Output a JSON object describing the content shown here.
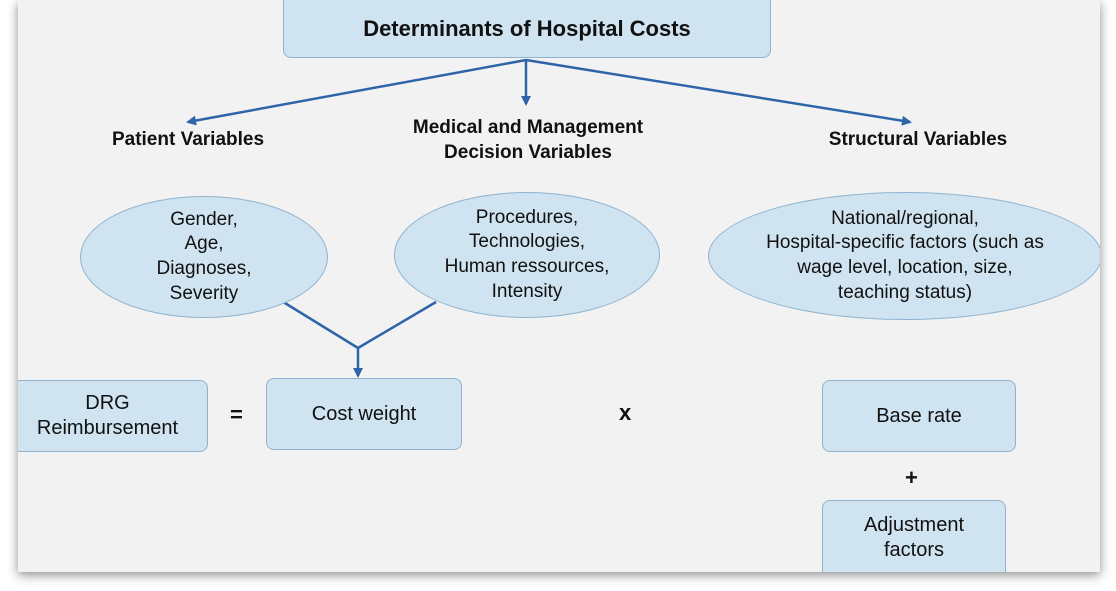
{
  "title": "Determinants of Hospital Costs",
  "categories": [
    {
      "heading": "Patient Variables",
      "factors": "Gender,\nAge,\nDiagnoses,\nSeverity"
    },
    {
      "heading": "Medical and Management\nDecision Variables",
      "factors": "Procedures,\nTechnologies,\nHuman ressources,\nIntensity"
    },
    {
      "heading": "Structural Variables",
      "factors": "National/regional,\nHospital-specific factors (such as\nwage level, location, size,\nteaching status)"
    }
  ],
  "formula": {
    "result": "DRG Reimbursement",
    "equals": "=",
    "cost_weight": "Cost weight",
    "times": "x",
    "base_rate": "Base rate",
    "plus": "+",
    "adjustment": "Adjustment factors"
  },
  "colors": {
    "box_fill": "#cfe3f1",
    "box_border": "#8fb3cf",
    "arrow": "#2e64a8"
  }
}
